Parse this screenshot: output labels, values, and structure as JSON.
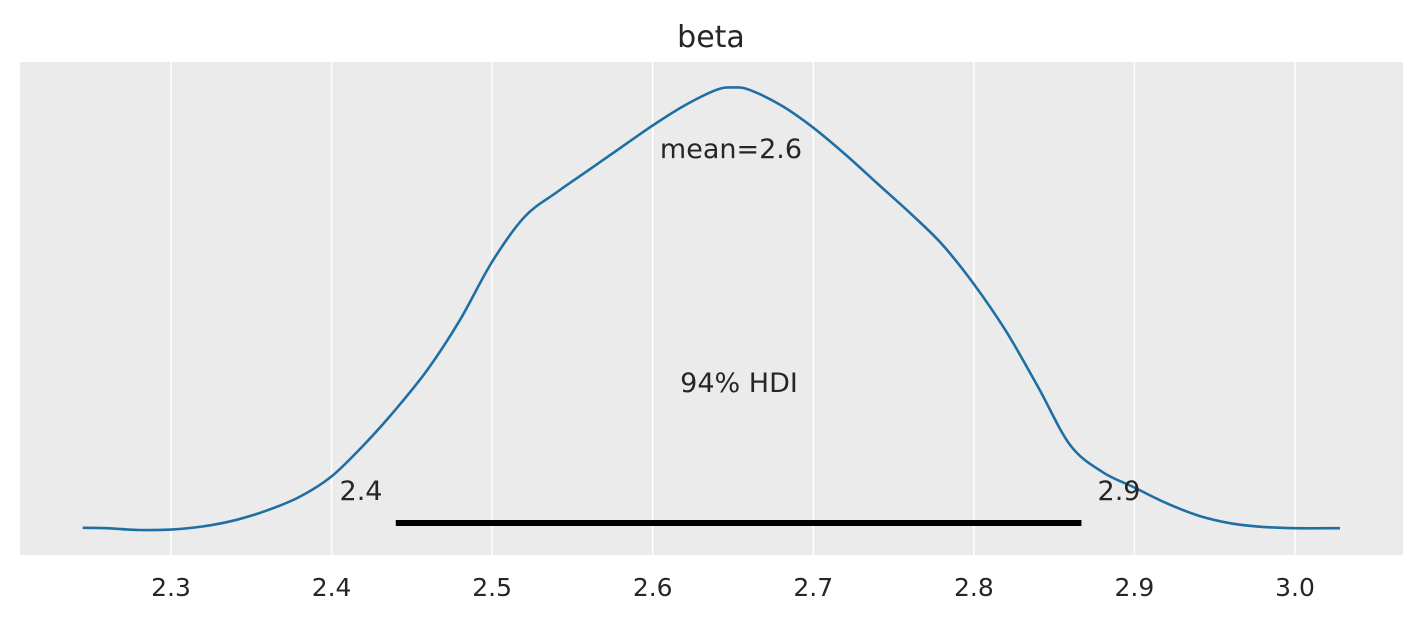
{
  "chart_data": {
    "type": "area",
    "title": "beta",
    "xlabel": "",
    "ylabel": "",
    "xlim": [
      2.245,
      3.07
    ],
    "ylim": [
      0,
      1.0
    ],
    "grid": true,
    "x_ticks": [
      "2.3",
      "2.4",
      "2.5",
      "2.6",
      "2.7",
      "2.8",
      "2.9",
      "3.0"
    ],
    "x_tick_values": [
      2.3,
      2.4,
      2.5,
      2.6,
      2.7,
      2.8,
      2.9,
      3.0
    ],
    "series": [
      {
        "x": [
          2.245,
          2.26,
          2.28,
          2.3,
          2.32,
          2.34,
          2.36,
          2.38,
          2.4,
          2.42,
          2.44,
          2.46,
          2.48,
          2.5,
          2.52,
          2.54,
          2.56,
          2.58,
          2.6,
          2.62,
          2.64,
          2.65,
          2.66,
          2.68,
          2.7,
          2.72,
          2.74,
          2.76,
          2.78,
          2.8,
          2.82,
          2.84,
          2.86,
          2.88,
          2.9,
          2.92,
          2.94,
          2.96,
          2.98,
          3.0,
          3.028
        ],
        "y": [
          0.005,
          0.004,
          0.0,
          0.001,
          0.008,
          0.022,
          0.044,
          0.074,
          0.12,
          0.19,
          0.27,
          0.36,
          0.47,
          0.6,
          0.7,
          0.755,
          0.805,
          0.855,
          0.905,
          0.95,
          0.985,
          0.99,
          0.985,
          0.95,
          0.9,
          0.84,
          0.775,
          0.71,
          0.64,
          0.55,
          0.445,
          0.32,
          0.19,
          0.13,
          0.095,
          0.06,
          0.032,
          0.015,
          0.007,
          0.004,
          0.004
        ]
      }
    ],
    "annotations": {
      "mean_label": "mean=2.6",
      "hdi_label": "94% HDI",
      "hdi_low_label": "2.4",
      "hdi_high_label": "2.9",
      "hdi_low": 2.44,
      "hdi_high": 2.867
    },
    "colors": {
      "line": "#1F6FA3",
      "background": "#EBEBEB",
      "grid": "#FFFFFF",
      "hdi_bar": "#000000"
    }
  }
}
